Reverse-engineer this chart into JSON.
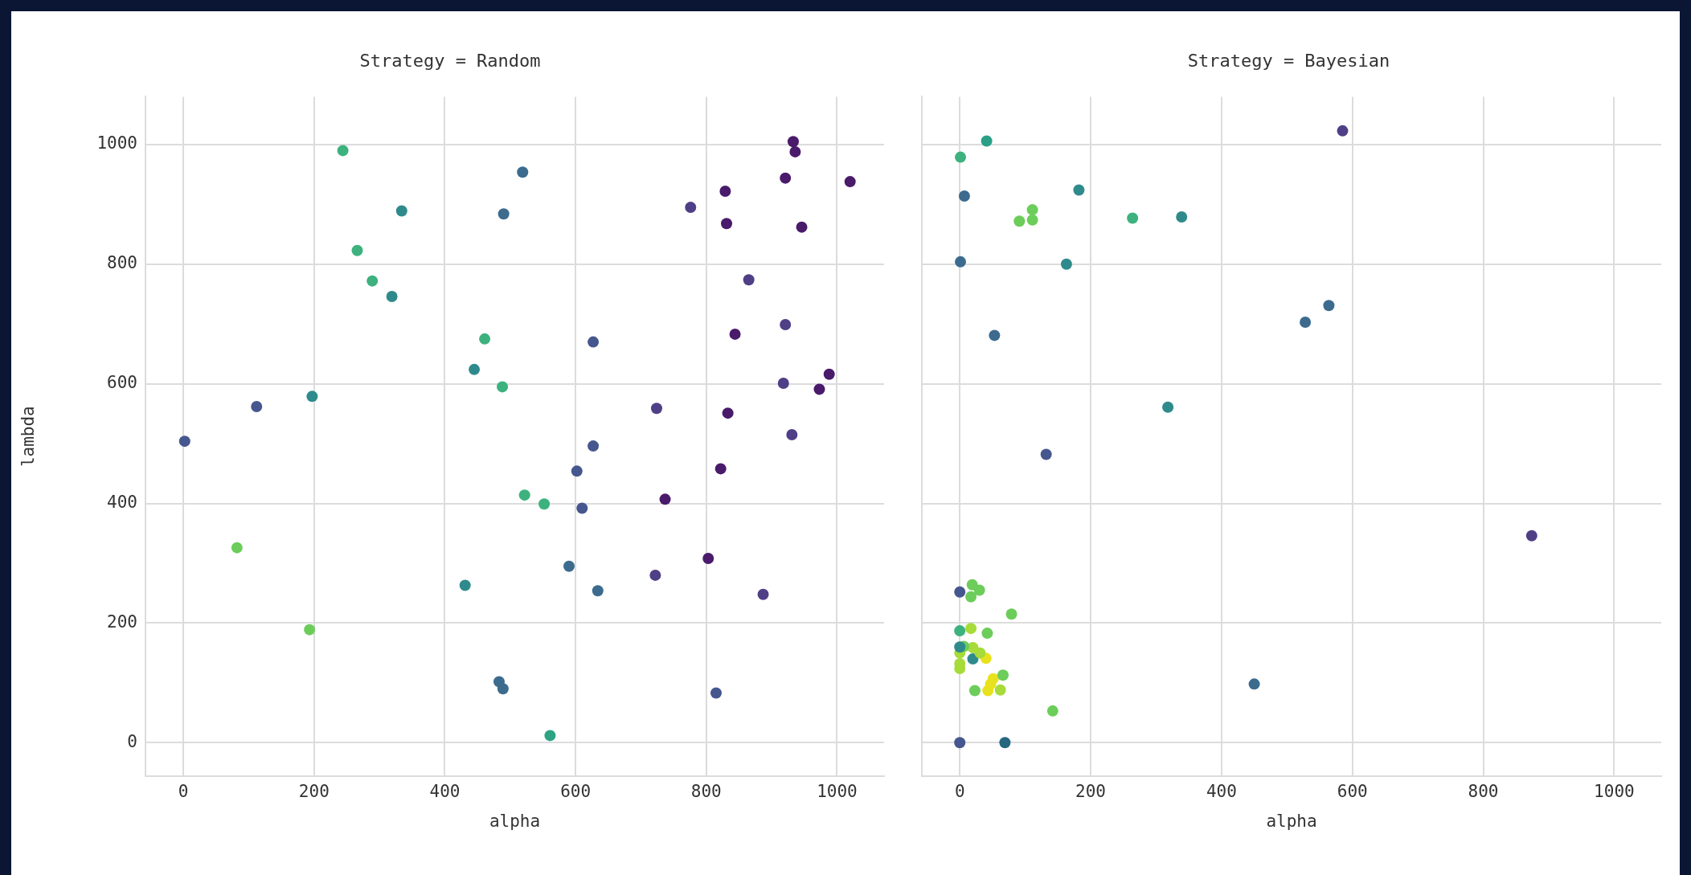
{
  "chart_data": [
    {
      "type": "scatter",
      "title": "Strategy = Random",
      "xlabel": "alpha",
      "ylabel": "lambda",
      "grid": true,
      "marker": "circle",
      "xlim": [
        -58,
        1072
      ],
      "ylim": [
        -56,
        1080
      ],
      "xticks": [
        0,
        200,
        400,
        600,
        800,
        1000
      ],
      "yticks": [
        0,
        200,
        400,
        600,
        800,
        1000
      ],
      "x": [
        244,
        334,
        266,
        289,
        319,
        461,
        445,
        488,
        197,
        112,
        2,
        82,
        193,
        431,
        483,
        489,
        519,
        490,
        933,
        936,
        921,
        1020,
        829,
        776,
        831,
        946,
        865,
        921,
        844,
        627,
        988,
        918,
        973,
        724,
        833,
        931,
        627,
        602,
        822,
        522,
        552,
        737,
        610,
        590,
        803,
        722,
        634,
        887,
        815,
        561
      ],
      "values": [
        990,
        889,
        823,
        772,
        746,
        675,
        624,
        595,
        579,
        562,
        504,
        326,
        189,
        263,
        102,
        90,
        954,
        884,
        1005,
        988,
        944,
        938,
        922,
        895,
        868,
        862,
        774,
        699,
        683,
        670,
        616,
        601,
        591,
        559,
        551,
        515,
        496,
        454,
        458,
        414,
        399,
        407,
        392,
        295,
        308,
        280,
        254,
        248,
        83,
        12
      ],
      "colors": [
        "#3db27f",
        "#2f8a8c",
        "#3db27f",
        "#3db27f",
        "#2f8a8c",
        "#3db27f",
        "#2f8a8c",
        "#3db27f",
        "#2f8a8c",
        "#46578f",
        "#46578f",
        "#6ccd5a",
        "#6ccd5a",
        "#2f8a8c",
        "#3c6b8e",
        "#3c6b8e",
        "#3c6b8e",
        "#3c6b8e",
        "#4a1a6b",
        "#4a1a6b",
        "#4a1a6b",
        "#4a1a6b",
        "#4a1a6b",
        "#4f3f86",
        "#4a1a6b",
        "#4a1a6b",
        "#4f3f86",
        "#4f3f86",
        "#4a1a6b",
        "#46578f",
        "#4a1a6b",
        "#4f3f86",
        "#4a1a6b",
        "#4f3f86",
        "#4a1a6b",
        "#4f3f86",
        "#46578f",
        "#46578f",
        "#4a1a6b",
        "#3db27f",
        "#3db27f",
        "#4a1a6b",
        "#46578f",
        "#3c6b8e",
        "#4a1a6b",
        "#4f3f86",
        "#3c6b8e",
        "#4f3f86",
        "#46578f",
        "#2ea383"
      ]
    },
    {
      "type": "scatter",
      "title": "Strategy = Bayesian",
      "xlabel": "alpha",
      "grid": true,
      "marker": "circle",
      "tick_labels": "x",
      "xlim": [
        -58,
        1072
      ],
      "ylim": [
        -56,
        1080
      ],
      "xticks": [
        0,
        200,
        400,
        600,
        800,
        1000
      ],
      "yticks": [
        0,
        200,
        400,
        600,
        800,
        1000
      ],
      "x": [
        585,
        41,
        1,
        7,
        182,
        111,
        91,
        111,
        264,
        339,
        1,
        163,
        564,
        528,
        53,
        318,
        132,
        874,
        450,
        0,
        19,
        30,
        17,
        79,
        0,
        17,
        42,
        0,
        6,
        20,
        0,
        31,
        20,
        40,
        0,
        0,
        66,
        51,
        47,
        43,
        62,
        23,
        142,
        0,
        69
      ],
      "values": [
        1023,
        1006,
        979,
        914,
        924,
        891,
        872,
        874,
        877,
        879,
        804,
        800,
        731,
        703,
        681,
        561,
        482,
        346,
        98,
        252,
        264,
        255,
        244,
        215,
        187,
        191,
        183,
        160,
        161,
        159,
        150,
        150,
        140,
        141,
        132,
        124,
        113,
        107,
        98,
        87,
        88,
        87,
        53,
        0,
        0
      ],
      "colors": [
        "#4f3f86",
        "#2c9f88",
        "#3db27f",
        "#3c6b8e",
        "#2f8a8c",
        "#6ccd5a",
        "#6ccd5a",
        "#6ccd5a",
        "#3db27f",
        "#2f8a8c",
        "#3c6b8e",
        "#2f8a8c",
        "#3c6b8e",
        "#3c6b8e",
        "#3c6b8e",
        "#2f8a8c",
        "#46578f",
        "#4f3f86",
        "#3c6b8e",
        "#46578f",
        "#6ccd5a",
        "#6ccd5a",
        "#6ccd5a",
        "#6ccd5a",
        "#3db27f",
        "#a6db3a",
        "#6ccd5a",
        "#2f8a8c",
        "#6ccd5a",
        "#a6db3a",
        "#a6db3a",
        "#a6db3a",
        "#2f8a8c",
        "#e8e21e",
        "#a6db3a",
        "#a6db3a",
        "#6ccd5a",
        "#e8e21e",
        "#e8e21e",
        "#e8e21e",
        "#a6db3a",
        "#6ccd5a",
        "#6ccd5a",
        "#46578f",
        "#25667f"
      ]
    }
  ]
}
